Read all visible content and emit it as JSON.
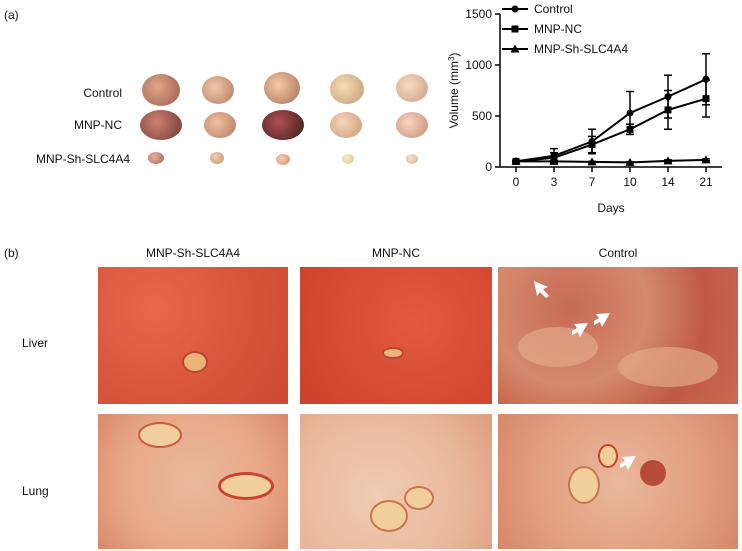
{
  "panel_a": {
    "letter": "(a)",
    "tumor_rows": [
      {
        "label": "Control"
      },
      {
        "label": "MNP-NC"
      },
      {
        "label": "MNP-Sh-SLC4A4"
      }
    ]
  },
  "panel_b": {
    "letter": "(b)",
    "columns": [
      "MNP-Sh-SLC4A4",
      "MNP-NC",
      "Control"
    ],
    "rows": [
      "Liver",
      "Lung"
    ]
  },
  "colors": {
    "liver": "#d9583e",
    "lung": "#e8b89a",
    "arrow": "#ffffff",
    "line": "#000000"
  },
  "chart_data": {
    "type": "line",
    "x": [
      "0",
      "3",
      "7",
      "10",
      "14",
      "21"
    ],
    "series": [
      {
        "name": "Control",
        "marker": "circle",
        "values": [
          55,
          110,
          250,
          530,
          690,
          860
        ],
        "errors": [
          10,
          70,
          120,
          210,
          210,
          250
        ]
      },
      {
        "name": "MNP-NC",
        "marker": "square",
        "values": [
          55,
          90,
          220,
          370,
          560,
          670
        ],
        "errors": [
          10,
          50,
          80,
          50,
          190,
          180
        ]
      },
      {
        "name": "MNP-Sh-SLC4A4",
        "marker": "triangle",
        "values": [
          55,
          55,
          50,
          45,
          60,
          70
        ],
        "errors": [
          5,
          5,
          5,
          5,
          10,
          10
        ]
      }
    ],
    "xlabel": "Days",
    "ylabel": "Volume (mm3)",
    "ylim": [
      0,
      1500
    ],
    "yticks": [
      "0",
      "500",
      "1000",
      "1500"
    ],
    "legend": "top-left"
  }
}
